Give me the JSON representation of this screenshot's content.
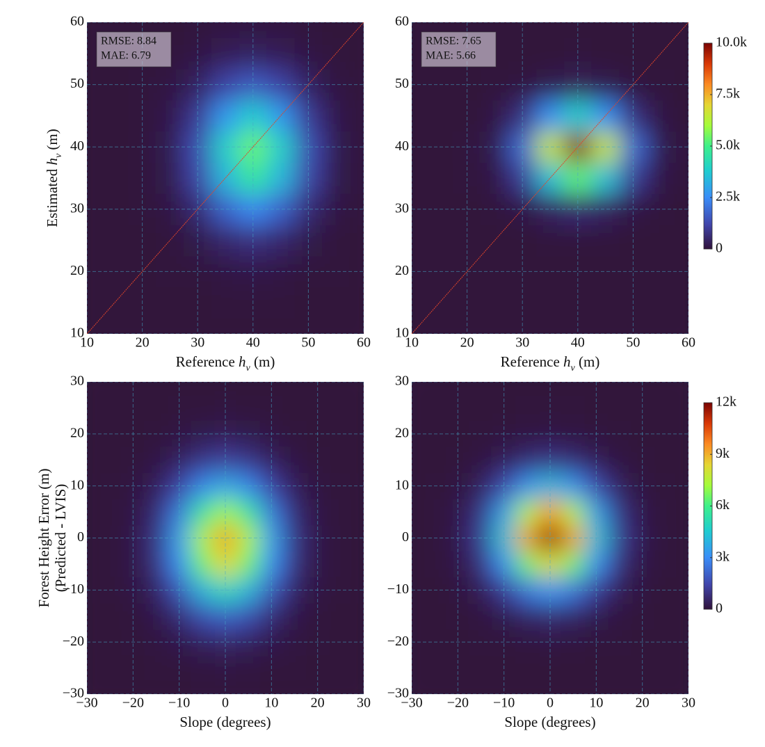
{
  "chart_data": [
    {
      "type": "heatmap",
      "x": [
        10,
        15,
        20,
        25,
        30,
        35,
        40,
        45,
        50,
        55,
        60
      ],
      "y": [
        10,
        15,
        20,
        25,
        30,
        35,
        40,
        45,
        50,
        55,
        60
      ],
      "values": [
        [
          0,
          0,
          0,
          0,
          0,
          1,
          1,
          1,
          0,
          0,
          0
        ],
        [
          0,
          0,
          0,
          1,
          4,
          12,
          17,
          12,
          4,
          1,
          0
        ],
        [
          0,
          0,
          1,
          6,
          34,
          98,
          138,
          98,
          34,
          6,
          1
        ],
        [
          0,
          0,
          3,
          33,
          186,
          527,
          742,
          527,
          186,
          33,
          3
        ],
        [
          0,
          0,
          10,
          106,
          605,
          1718,
          2420,
          1718,
          605,
          106,
          10
        ],
        [
          0,
          0,
          19,
          206,
          1169,
          3319,
          4675,
          3319,
          1169,
          206,
          19
        ],
        [
          0,
          0,
          22,
          240,
          1361,
          3866,
          5445,
          3866,
          1361,
          240,
          22
        ],
        [
          0,
          0,
          15,
          167,
          949,
          2694,
          3795,
          2694,
          949,
          167,
          15
        ],
        [
          0,
          0,
          6,
          70,
          399,
          1132,
          1595,
          1132,
          399,
          70,
          6
        ],
        [
          0,
          0,
          2,
          18,
          100,
          285,
          402,
          285,
          100,
          18,
          2
        ],
        [
          0,
          0,
          0,
          3,
          15,
          43,
          60,
          43,
          15,
          3,
          0
        ]
      ],
      "clim": [
        0,
        10000
      ],
      "xlim": [
        10,
        60
      ],
      "ylim": [
        10,
        60
      ],
      "xticks": [
        10,
        20,
        30,
        40,
        50,
        60
      ],
      "yticks": [
        10,
        20,
        30,
        40,
        50,
        60
      ],
      "xlabel": {
        "pre": "Reference ",
        "var": "h",
        "sub": "v",
        "post": " (m)"
      },
      "ylabel": {
        "pre": "Estimated ",
        "var": "h",
        "sub": "v",
        "post": " (m)"
      },
      "annotations": [
        "RMSE: 8.84",
        "MAE: 6.79"
      ],
      "diagonal": true,
      "diagonal_color": "#e0452a",
      "grid": true
    },
    {
      "type": "heatmap",
      "x": [
        10,
        15,
        20,
        25,
        30,
        35,
        40,
        45,
        50,
        55,
        60
      ],
      "y": [
        10,
        15,
        20,
        25,
        30,
        35,
        40,
        45,
        50,
        55,
        60
      ],
      "values": [
        [
          0,
          0,
          0,
          0,
          0,
          0,
          0,
          0,
          0,
          0,
          0
        ],
        [
          0,
          0,
          0,
          0,
          0,
          0,
          0,
          0,
          0,
          0,
          0
        ],
        [
          0,
          0,
          0,
          0,
          0,
          0,
          0,
          0,
          0,
          0,
          0
        ],
        [
          0,
          0,
          0,
          0,
          3,
          9,
          14,
          9,
          3,
          0,
          0
        ],
        [
          0,
          0,
          1,
          14,
          114,
          396,
          600,
          396,
          114,
          14,
          1
        ],
        [
          0,
          0,
          7,
          127,
          1007,
          3498,
          5300,
          3498,
          1007,
          127,
          7
        ],
        [
          0,
          0,
          14,
          238,
          1881,
          6534,
          9900,
          6534,
          1881,
          238,
          14
        ],
        [
          0,
          0,
          5,
          94,
          741,
          2574,
          3900,
          2574,
          741,
          94,
          5
        ],
        [
          0,
          0,
          0,
          8,
          61,
          211,
          320,
          211,
          61,
          8,
          0
        ],
        [
          0,
          0,
          0,
          0,
          1,
          4,
          6,
          4,
          1,
          0,
          0
        ],
        [
          0,
          0,
          0,
          0,
          0,
          0,
          0,
          0,
          0,
          0,
          0
        ]
      ],
      "clim": [
        0,
        10000
      ],
      "xlim": [
        10,
        60
      ],
      "ylim": [
        10,
        60
      ],
      "xticks": [
        10,
        20,
        30,
        40,
        50,
        60
      ],
      "yticks": [
        10,
        20,
        30,
        40,
        50,
        60
      ],
      "xlabel": {
        "pre": "Reference ",
        "var": "h",
        "sub": "v",
        "post": " (m)"
      },
      "annotations": [
        "RMSE: 7.65",
        "MAE: 5.66"
      ],
      "diagonal": true,
      "diagonal_color": "#e0452a",
      "grid": true,
      "colorbar": {
        "ticks": [
          0,
          {
            "value": 2500,
            "label": "2.5k"
          },
          {
            "value": 5000,
            "label": "5.0k"
          },
          {
            "value": 7500,
            "label": "7.5k"
          },
          {
            "value": 10000,
            "label": "10.0k"
          }
        ]
      }
    },
    {
      "type": "heatmap",
      "x": [
        -30,
        -25,
        -20,
        -15,
        -10,
        -5,
        0,
        5,
        10,
        15,
        20,
        25,
        30
      ],
      "y": [
        -30,
        -25,
        -20,
        -15,
        -10,
        -5,
        0,
        5,
        10,
        15,
        20,
        25,
        30
      ],
      "values": [
        [
          0,
          0,
          0,
          1,
          5,
          10,
          13,
          10,
          5,
          1,
          0,
          0,
          0
        ],
        [
          0,
          0,
          2,
          11,
          38,
          81,
          105,
          81,
          38,
          11,
          2,
          0,
          0
        ],
        [
          0,
          1,
          10,
          57,
          205,
          442,
          570,
          442,
          205,
          57,
          10,
          1,
          0
        ],
        [
          0,
          4,
          36,
          209,
          752,
          1620,
          2090,
          1620,
          752,
          209,
          36,
          4,
          0
        ],
        [
          1,
          10,
          86,
          504,
          1813,
          3902,
          5035,
          3902,
          1813,
          504,
          86,
          10,
          1
        ],
        [
          1,
          17,
          142,
          836,
          3010,
          6479,
          8360,
          6479,
          3010,
          836,
          142,
          17,
          1
        ],
        [
          1,
          19,
          160,
          941,
          3386,
          7289,
          9405,
          7289,
          3386,
          941,
          160,
          19,
          1
        ],
        [
          1,
          14,
          121,
          713,
          2565,
          5522,
          7125,
          5522,
          2565,
          713,
          121,
          14,
          1
        ],
        [
          0,
          7,
          63,
          371,
          1334,
          2871,
          3705,
          2871,
          1334,
          371,
          63,
          7,
          0
        ],
        [
          0,
          3,
          22,
          128,
          462,
          994,
          1283,
          994,
          462,
          128,
          22,
          3,
          0
        ],
        [
          0,
          1,
          5,
          30,
          109,
          236,
          304,
          236,
          109,
          30,
          5,
          1,
          0
        ],
        [
          0,
          0,
          1,
          5,
          17,
          37,
          48,
          37,
          17,
          5,
          1,
          0,
          0
        ],
        [
          0,
          0,
          0,
          0,
          2,
          4,
          5,
          4,
          2,
          0,
          0,
          0,
          0
        ]
      ],
      "clim": [
        0,
        12000
      ],
      "xlim": [
        -30,
        30
      ],
      "ylim": [
        -30,
        30
      ],
      "xticks": [
        {
          "value": -30,
          "label": "−30"
        },
        {
          "value": -20,
          "label": "−20"
        },
        {
          "value": -10,
          "label": "−10"
        },
        0,
        10,
        20,
        30
      ],
      "yticks": [
        {
          "value": -30,
          "label": "−30"
        },
        {
          "value": -20,
          "label": "−20"
        },
        {
          "value": -10,
          "label": "−10"
        },
        0,
        10,
        20,
        30
      ],
      "xlabel": "Slope (degrees)",
      "ylabel": [
        "Forest Height Error (m)",
        "(Predicted - LVIS)"
      ],
      "grid": true
    },
    {
      "type": "heatmap",
      "x": [
        -30,
        -25,
        -20,
        -15,
        -10,
        -5,
        0,
        5,
        10,
        15,
        20,
        25,
        30
      ],
      "y": [
        -30,
        -25,
        -20,
        -15,
        -10,
        -5,
        0,
        5,
        10,
        15,
        20,
        25,
        30
      ],
      "values": [
        [
          0,
          0,
          0,
          0,
          0,
          0,
          0,
          0,
          0,
          0,
          0,
          0,
          0
        ],
        [
          0,
          0,
          0,
          1,
          2,
          5,
          6,
          5,
          2,
          1,
          0,
          0,
          0
        ],
        [
          0,
          0,
          1,
          8,
          30,
          65,
          84,
          65,
          30,
          8,
          1,
          0,
          0
        ],
        [
          0,
          1,
          12,
          70,
          251,
          539,
          696,
          539,
          251,
          70,
          12,
          1,
          0
        ],
        [
          0,
          6,
          55,
          324,
          1166,
          2511,
          3240,
          2511,
          1166,
          324,
          55,
          6,
          0
        ],
        [
          1,
          17,
          143,
          840,
          3024,
          6510,
          8400,
          6510,
          3024,
          840,
          143,
          17,
          1
        ],
        [
          1,
          24,
          204,
          1200,
          4320,
          9300,
          12000,
          9300,
          4320,
          1200,
          204,
          24,
          1
        ],
        [
          1,
          19,
          161,
          948,
          3413,
          7347,
          9480,
          7347,
          3413,
          948,
          161,
          19,
          1
        ],
        [
          0,
          8,
          69,
          408,
          1469,
          3162,
          4080,
          3162,
          1469,
          408,
          69,
          8,
          0
        ],
        [
          0,
          2,
          17,
          100,
          359,
          772,
          996,
          772,
          359,
          100,
          17,
          2,
          0
        ],
        [
          0,
          0,
          2,
          13,
          48,
          102,
          132,
          102,
          48,
          13,
          2,
          0,
          0
        ],
        [
          0,
          0,
          0,
          1,
          4,
          8,
          10,
          8,
          4,
          1,
          0,
          0,
          0
        ],
        [
          0,
          0,
          0,
          0,
          0,
          0,
          0,
          0,
          0,
          0,
          0,
          0,
          0
        ]
      ],
      "clim": [
        0,
        12000
      ],
      "xlim": [
        -30,
        30
      ],
      "ylim": [
        -30,
        30
      ],
      "xticks": [
        {
          "value": -30,
          "label": "−30"
        },
        {
          "value": -20,
          "label": "−20"
        },
        {
          "value": -10,
          "label": "−10"
        },
        0,
        10,
        20,
        30
      ],
      "yticks": [
        {
          "value": -30,
          "label": "−30"
        },
        {
          "value": -20,
          "label": "−20"
        },
        {
          "value": -10,
          "label": "−10"
        },
        0,
        10,
        20,
        30
      ],
      "xlabel": "Slope (degrees)",
      "grid": true,
      "colorbar": {
        "ticks": [
          0,
          {
            "value": 3000,
            "label": "3k"
          },
          {
            "value": 6000,
            "label": "6k"
          },
          {
            "value": 9000,
            "label": "9k"
          },
          {
            "value": 12000,
            "label": "12k"
          }
        ]
      }
    }
  ]
}
